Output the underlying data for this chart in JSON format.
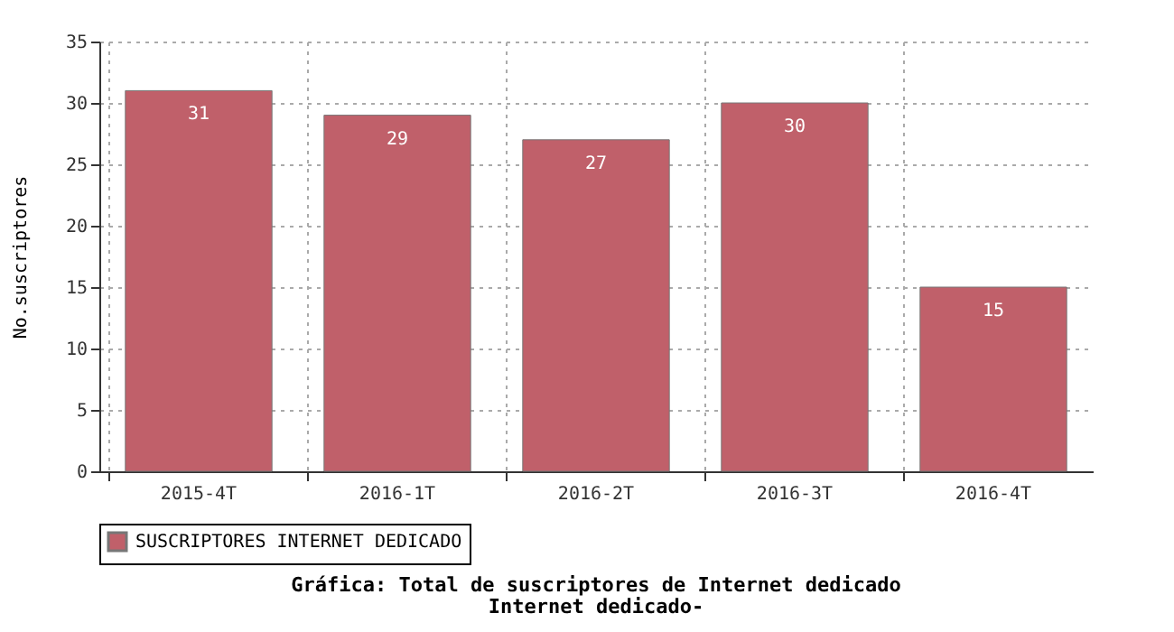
{
  "chart_data": {
    "type": "bar",
    "title": "Gráfica: Total de suscriptores de Internet dedicado",
    "subtitle": "Internet dedicado-",
    "ylabel": "No.suscriptores",
    "categories": [
      "2015-4T",
      "2016-1T",
      "2016-2T",
      "2016-3T",
      "2016-4T"
    ],
    "series": [
      {
        "name": "SUSCRIPTORES INTERNET DEDICADO",
        "color": "#c0606a",
        "values": [
          31,
          29,
          27,
          30,
          15
        ]
      }
    ],
    "ylim": [
      0,
      35
    ],
    "yticks": [
      0,
      5,
      10,
      15,
      20,
      25,
      30,
      35
    ],
    "grid": true,
    "legend": "bottom",
    "data_labels": true
  }
}
